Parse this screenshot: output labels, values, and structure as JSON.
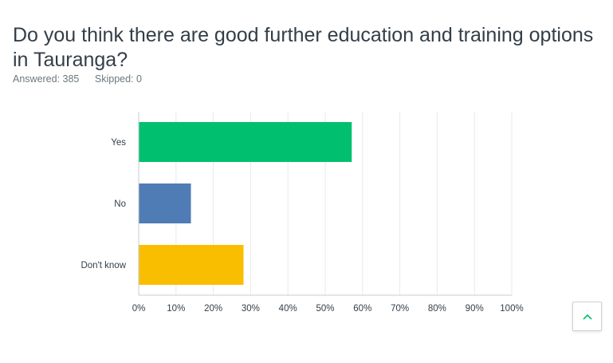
{
  "question": {
    "title": "Do you think there are good further education and training options in Tauranga?",
    "answered_label": "Answered: 385",
    "skipped_label": "Skipped: 0"
  },
  "chart_data": {
    "type": "bar",
    "orientation": "horizontal",
    "categories": [
      "Yes",
      "No",
      "Don't know"
    ],
    "values": [
      57.1,
      14.0,
      28.1
    ],
    "colors": [
      "#00bf6f",
      "#507cb6",
      "#f9be00"
    ],
    "x_ticks": [
      "0%",
      "10%",
      "20%",
      "30%",
      "40%",
      "50%",
      "60%",
      "70%",
      "80%",
      "90%",
      "100%"
    ],
    "xlim": [
      0,
      100
    ],
    "grid": true,
    "title": "",
    "xlabel": "",
    "ylabel": ""
  },
  "scroll_top": {
    "icon": "chevron-up-icon"
  }
}
